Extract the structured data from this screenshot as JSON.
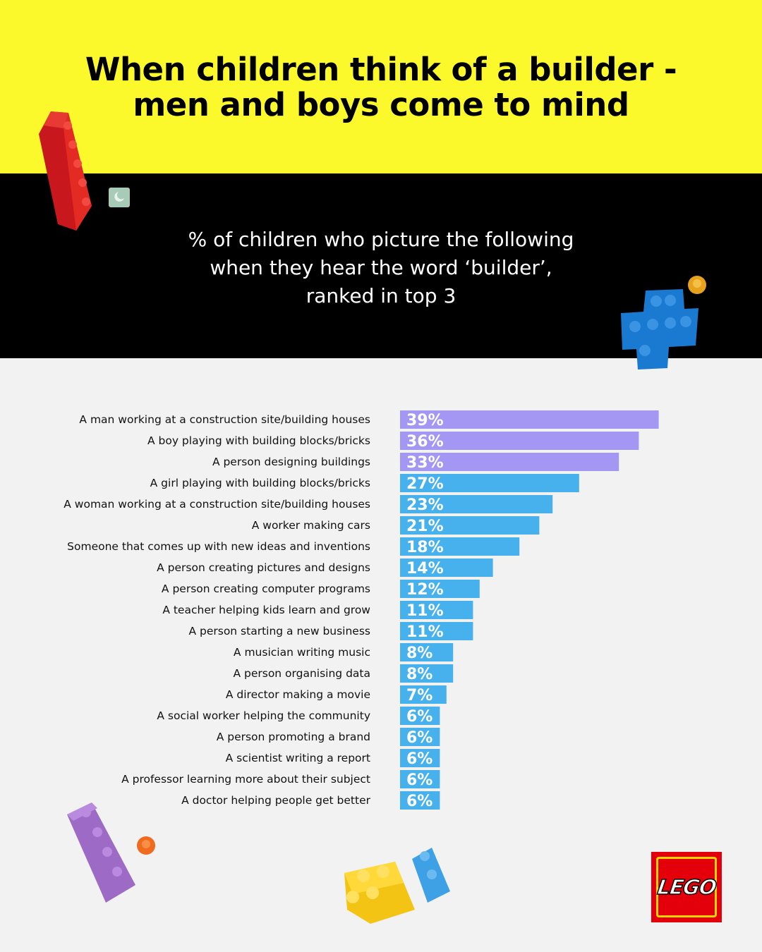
{
  "header": {
    "title_line1": "When children think of a builder -",
    "title_line2": "men and boys come to mind"
  },
  "subheader": {
    "line1": "% of children who picture the following",
    "line2": "when they hear the word ‘builder’,",
    "line3": "ranked in top 3"
  },
  "chart_data": {
    "type": "bar",
    "orientation": "horizontal",
    "categories": [
      "A man working at a construction site/building houses",
      "A boy playing with building blocks/bricks",
      "A person designing buildings",
      "A girl playing with building blocks/bricks",
      "A woman working at a construction site/building houses",
      "A worker making cars",
      "Someone that comes up with new ideas and inventions",
      "A person creating pictures and designs",
      "A person creating computer programs",
      "A teacher helping kids learn and grow",
      "A person starting a new business",
      "A musician writing music",
      "A person organising data",
      "A director making a movie",
      "A social worker helping the community",
      "A person promoting a brand",
      "A scientist writing a report",
      "A professor learning more about their subject",
      "A doctor helping people get better"
    ],
    "values": [
      39,
      36,
      33,
      27,
      23,
      21,
      18,
      14,
      12,
      11,
      11,
      8,
      8,
      7,
      6,
      6,
      6,
      6,
      6
    ],
    "value_labels": [
      "39%",
      "36%",
      "33%",
      "27%",
      "23%",
      "21%",
      "18%",
      "14%",
      "12%",
      "11%",
      "11%",
      "8%",
      "8%",
      "7%",
      "6%",
      "6%",
      "6%",
      "6%",
      "6%"
    ],
    "highlight_count": 3,
    "colors": {
      "highlight": "#a397f3",
      "default": "#46b1ec"
    },
    "grid": false,
    "legend": "none"
  },
  "logo": {
    "text": "LEGO",
    "background": "#e3000b"
  }
}
